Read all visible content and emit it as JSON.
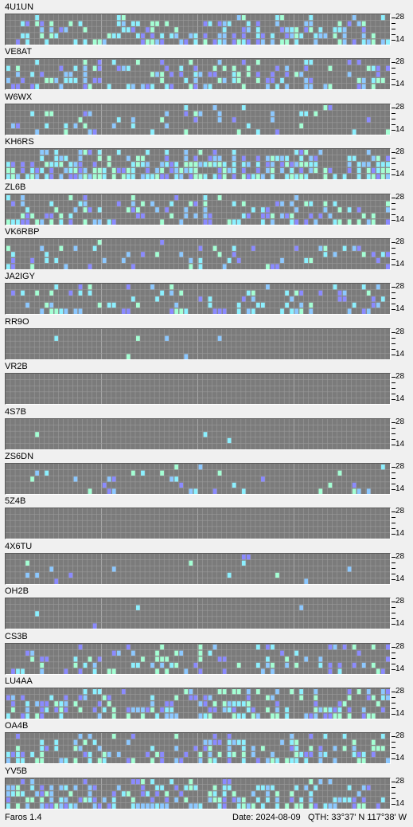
{
  "app": {
    "name": "Faros 1.4"
  },
  "status": {
    "date": "Date: 2024-08-09",
    "qth": "QTH: 33°37' N  117°38' W"
  },
  "bands": {
    "top": "28",
    "bottom": "14"
  },
  "colors": {
    "background": "#7b7b7b",
    "gridline": "#9a9a9a",
    "strong": "#a4ffd4",
    "medium": "#8cf0ff",
    "weak": "#8cc8ff",
    "faint": "#8a8aff",
    "noise": "#9c9c9c"
  },
  "stations": [
    {
      "callsign": "4U1UN"
    },
    {
      "callsign": "VE8AT"
    },
    {
      "callsign": "W6WX"
    },
    {
      "callsign": "KH6RS"
    },
    {
      "callsign": "ZL6B"
    },
    {
      "callsign": "VK6RBP"
    },
    {
      "callsign": "JA2IGY"
    },
    {
      "callsign": "RR9O"
    },
    {
      "callsign": "VR2B"
    },
    {
      "callsign": "4S7B"
    },
    {
      "callsign": "ZS6DN"
    },
    {
      "callsign": "5Z4B"
    },
    {
      "callsign": "4X6TU"
    },
    {
      "callsign": "OH2B"
    },
    {
      "callsign": "CS3B"
    },
    {
      "callsign": "LU4AA"
    },
    {
      "callsign": "OA4B"
    },
    {
      "callsign": "YV5B"
    }
  ]
}
